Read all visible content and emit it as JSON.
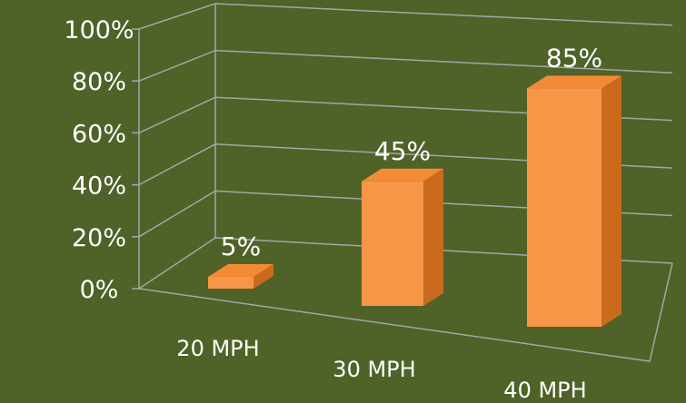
{
  "colors": {
    "background": "#4f6228",
    "bar_front": "#f79646",
    "bar_side": "#c96a1d",
    "bar_top": "#f48a36",
    "gridline": "#a6a6a6",
    "text": "#ffffff"
  },
  "chart_data": {
    "type": "bar",
    "style": "3d-column",
    "categories": [
      "20 MPH",
      "30 MPH",
      "40 MPH"
    ],
    "values": [
      5,
      45,
      85
    ],
    "value_labels": [
      "5%",
      "45%",
      "85%"
    ],
    "ylim": [
      0,
      100
    ],
    "ytick_labels": [
      "0%",
      "20%",
      "40%",
      "60%",
      "80%",
      "100%"
    ],
    "grid": true,
    "legend": "none"
  }
}
